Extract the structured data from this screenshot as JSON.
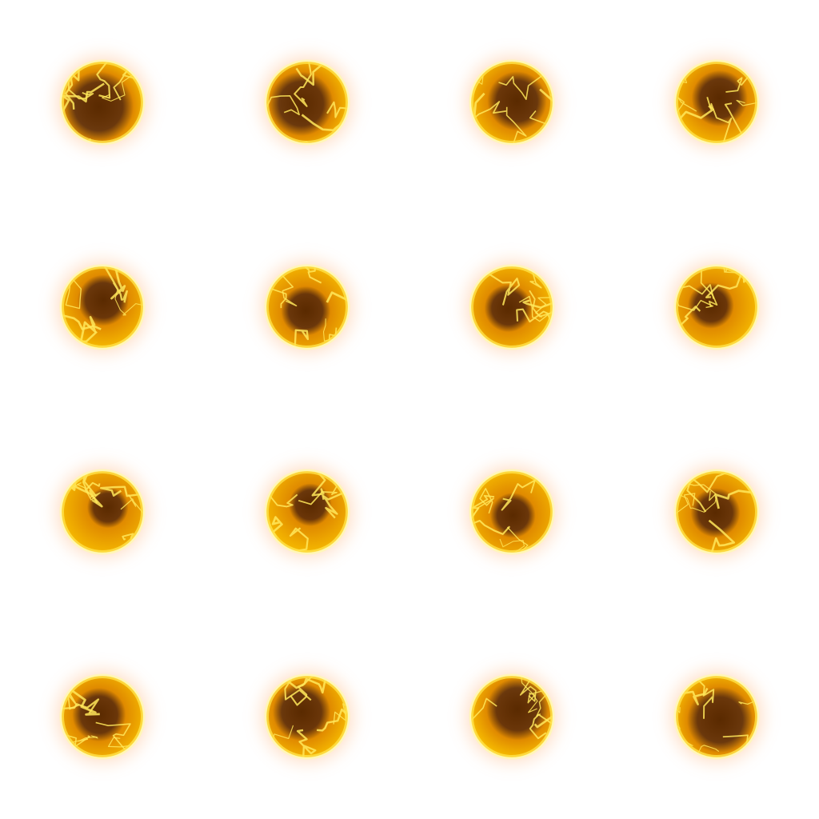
{
  "sprite_sheet": {
    "grid": {
      "rows": 4,
      "columns": 4
    },
    "background": "#ffffff",
    "colors": {
      "glow_outer": "#ffb37a",
      "glow_inner": "#ff8a2a",
      "rim": "#fff6b8",
      "rim_mid": "#ffe24a",
      "shell": "#f5b800",
      "core_light": "#e08a00",
      "core_dark": "#5a2a00",
      "vein": "#ffe85a"
    },
    "frames": [
      {
        "index": 1,
        "core_intensity": 0.85
      },
      {
        "index": 2,
        "core_intensity": 0.78
      },
      {
        "index": 3,
        "core_intensity": 0.72
      },
      {
        "index": 4,
        "core_intensity": 0.68
      },
      {
        "index": 5,
        "core_intensity": 0.62
      },
      {
        "index": 6,
        "core_intensity": 0.6
      },
      {
        "index": 7,
        "core_intensity": 0.58
      },
      {
        "index": 8,
        "core_intensity": 0.56
      },
      {
        "index": 9,
        "core_intensity": 0.5
      },
      {
        "index": 10,
        "core_intensity": 0.52
      },
      {
        "index": 11,
        "core_intensity": 0.55
      },
      {
        "index": 12,
        "core_intensity": 0.6
      },
      {
        "index": 13,
        "core_intensity": 0.65
      },
      {
        "index": 14,
        "core_intensity": 0.7
      },
      {
        "index": 15,
        "core_intensity": 0.75
      },
      {
        "index": 16,
        "core_intensity": 0.8
      }
    ]
  }
}
